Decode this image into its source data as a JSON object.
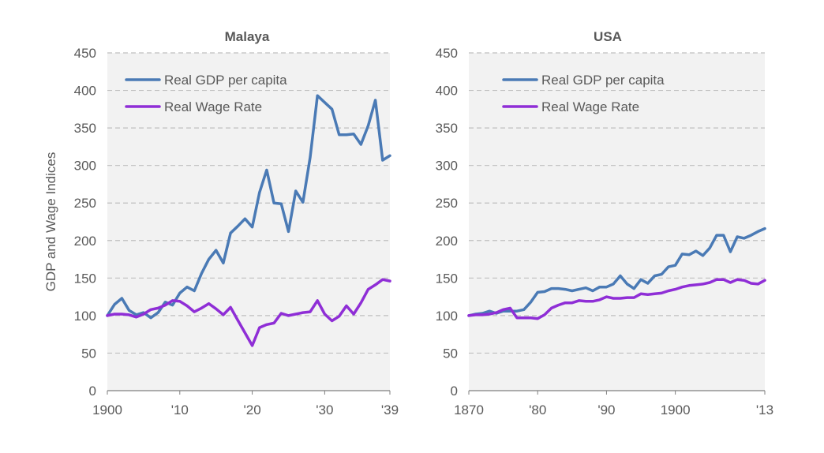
{
  "figure": {
    "ylabel": "GDP and Wage Indices"
  },
  "chart_data": [
    {
      "type": "line",
      "title": "Malaya",
      "ylabel": "GDP and Wage Indices",
      "xlim": [
        1900,
        1939
      ],
      "ylim": [
        0,
        450
      ],
      "yticks": [
        0,
        50,
        100,
        150,
        200,
        250,
        300,
        350,
        400,
        450
      ],
      "xticks": [
        {
          "value": 1900,
          "label": "1900"
        },
        {
          "value": 1910,
          "label": "'10"
        },
        {
          "value": 1920,
          "label": "'20"
        },
        {
          "value": 1930,
          "label": "'30"
        },
        {
          "value": 1939,
          "label": "'39"
        }
      ],
      "grid": "horizontal-dashed",
      "legend": "top-left",
      "x": [
        1900,
        1901,
        1902,
        1903,
        1904,
        1905,
        1906,
        1907,
        1908,
        1909,
        1910,
        1911,
        1912,
        1913,
        1914,
        1915,
        1916,
        1917,
        1918,
        1919,
        1920,
        1921,
        1922,
        1923,
        1924,
        1925,
        1926,
        1927,
        1928,
        1929,
        1930,
        1931,
        1932,
        1933,
        1934,
        1935,
        1936,
        1937,
        1938,
        1939
      ],
      "series": [
        {
          "name": "Real GDP per capita",
          "color": "#4a7ab5",
          "values": [
            100,
            115,
            123,
            107,
            101,
            104,
            97,
            104,
            118,
            114,
            130,
            138,
            133,
            156,
            175,
            187,
            170,
            210,
            219,
            229,
            218,
            264,
            294,
            250,
            249,
            212,
            266,
            251,
            311,
            393,
            384,
            375,
            341,
            341,
            342,
            328,
            353,
            387,
            307,
            313
          ]
        },
        {
          "name": "Real Wage Rate",
          "color": "#8f2ed6",
          "values": [
            100,
            102,
            102,
            101,
            98,
            102,
            108,
            110,
            114,
            120,
            119,
            113,
            105,
            110,
            116,
            109,
            101,
            111,
            94,
            77,
            60,
            84,
            88,
            90,
            103,
            100,
            102,
            104,
            105,
            120,
            102,
            93,
            99,
            113,
            102,
            117,
            135,
            141,
            148,
            146
          ]
        }
      ]
    },
    {
      "type": "line",
      "title": "USA",
      "xlim": [
        1870,
        1913
      ],
      "ylim": [
        0,
        450
      ],
      "yticks": [
        0,
        50,
        100,
        150,
        200,
        250,
        300,
        350,
        400,
        450
      ],
      "xticks": [
        {
          "value": 1870,
          "label": "1870"
        },
        {
          "value": 1880,
          "label": "'80"
        },
        {
          "value": 1890,
          "label": "'90"
        },
        {
          "value": 1900,
          "label": "1900"
        },
        {
          "value": 1913,
          "label": "'13"
        }
      ],
      "grid": "horizontal-dashed",
      "legend": "top-left",
      "x": [
        1870,
        1871,
        1872,
        1873,
        1874,
        1875,
        1876,
        1877,
        1878,
        1879,
        1880,
        1881,
        1882,
        1883,
        1884,
        1885,
        1886,
        1887,
        1888,
        1889,
        1890,
        1891,
        1892,
        1893,
        1894,
        1895,
        1896,
        1897,
        1898,
        1899,
        1900,
        1901,
        1902,
        1903,
        1904,
        1905,
        1906,
        1907,
        1908,
        1909,
        1910,
        1911,
        1912,
        1913
      ],
      "series": [
        {
          "name": "Real GDP per capita",
          "color": "#4a7ab5",
          "values": [
            100,
            102,
            103,
            106,
            103,
            106,
            106,
            106,
            108,
            118,
            131,
            132,
            136,
            136,
            135,
            133,
            135,
            137,
            133,
            138,
            138,
            142,
            153,
            142,
            136,
            148,
            143,
            153,
            155,
            165,
            167,
            182,
            181,
            186,
            180,
            190,
            207,
            207,
            185,
            205,
            203,
            207,
            212,
            216
          ]
        },
        {
          "name": "Real Wage Rate",
          "color": "#8f2ed6",
          "values": [
            100,
            101,
            101,
            102,
            104,
            108,
            110,
            97,
            97,
            97,
            96,
            101,
            110,
            114,
            117,
            117,
            120,
            119,
            119,
            121,
            125,
            123,
            123,
            124,
            124,
            129,
            128,
            129,
            130,
            133,
            135,
            138,
            140,
            141,
            142,
            144,
            148,
            148,
            144,
            148,
            147,
            143,
            142,
            147
          ]
        }
      ]
    }
  ]
}
